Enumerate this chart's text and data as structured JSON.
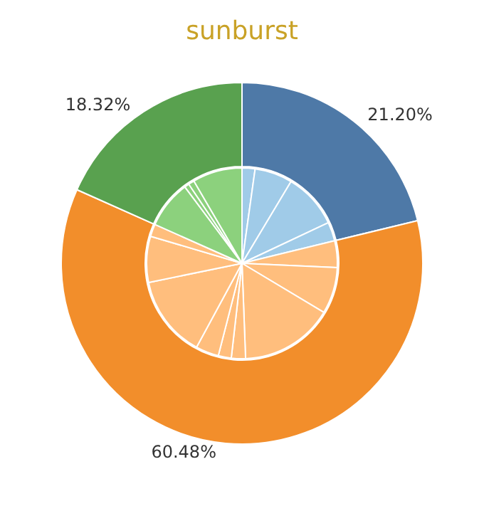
{
  "chart_data": [
    {
      "type": "donut",
      "title": "sunburst",
      "categories": [
        null,
        null,
        null
      ],
      "values": [
        21.2,
        60.48,
        18.32
      ],
      "colors": [
        "#4e79a7",
        "#f28e2b",
        "#59a14f"
      ],
      "value_labels": [
        "21.20%",
        "60.48%",
        "18.32%"
      ]
    },
    {
      "type": "pie",
      "categories": [
        null,
        null,
        null,
        null,
        null,
        null,
        null,
        null,
        null,
        null,
        null,
        null,
        null,
        null,
        null,
        null,
        null
      ],
      "values": [
        2.2,
        6.4,
        9.4,
        3.2,
        4.5,
        7.9,
        15.8,
        2.4,
        2.2,
        3.9,
        13.88,
        7.8,
        2.1,
        8.1,
        0.8,
        1.0,
        8.42
      ],
      "colors": [
        "#a0cbe8",
        "#a0cbe8",
        "#a0cbe8",
        "#a0cbe8",
        "#ffbe7d",
        "#ffbe7d",
        "#ffbe7d",
        "#ffbe7d",
        "#ffbe7d",
        "#ffbe7d",
        "#ffbe7d",
        "#ffbe7d",
        "#ffbe7d",
        "#8cd17d",
        "#8cd17d",
        "#8cd17d",
        "#8cd17d"
      ]
    }
  ]
}
